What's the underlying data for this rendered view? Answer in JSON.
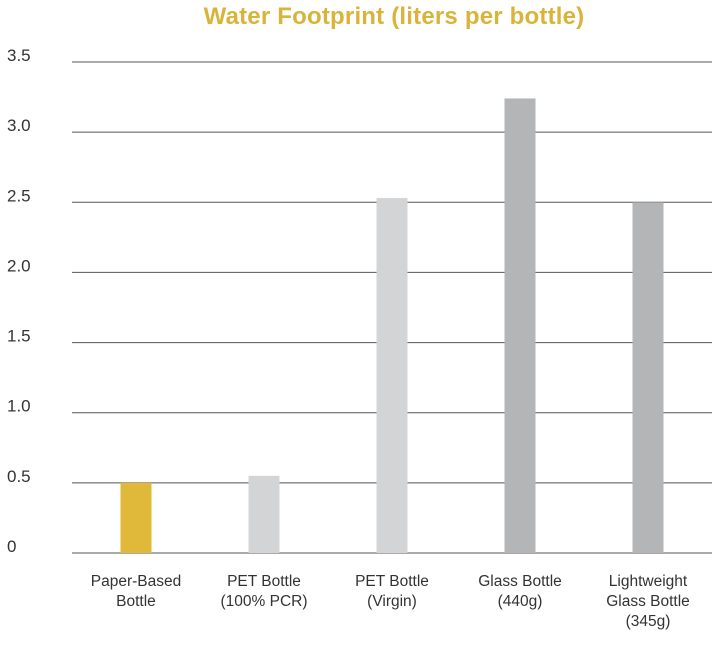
{
  "chart_data": {
    "type": "bar",
    "title": "Water Footprint (liters per bottle)",
    "xlabel": "",
    "ylabel": "",
    "ylim": [
      0,
      3.5
    ],
    "yticks": [
      "0",
      "0.5",
      "1.0",
      "1.5",
      "2.0",
      "2.5",
      "3.0",
      "3.5"
    ],
    "grid": true,
    "legend": "none",
    "categories": [
      [
        "Paper-Based",
        "Bottle"
      ],
      [
        "PET Bottle",
        "(100% PCR)"
      ],
      [
        "PET Bottle",
        "(Virgin)"
      ],
      [
        "Glass Bottle",
        "(440g)"
      ],
      [
        "Lightweight",
        "Glass Bottle",
        "(345g)"
      ]
    ],
    "values": [
      0.5,
      0.55,
      2.53,
      3.24,
      2.5
    ],
    "colors": [
      "#e0b83a",
      "#d3d4d6",
      "#d3d4d6",
      "#b3b5b7",
      "#b3b5b7"
    ]
  },
  "style": {
    "title_color": "#d9b43a",
    "axis_text_color": "#333333",
    "grid_color": "#555555"
  }
}
